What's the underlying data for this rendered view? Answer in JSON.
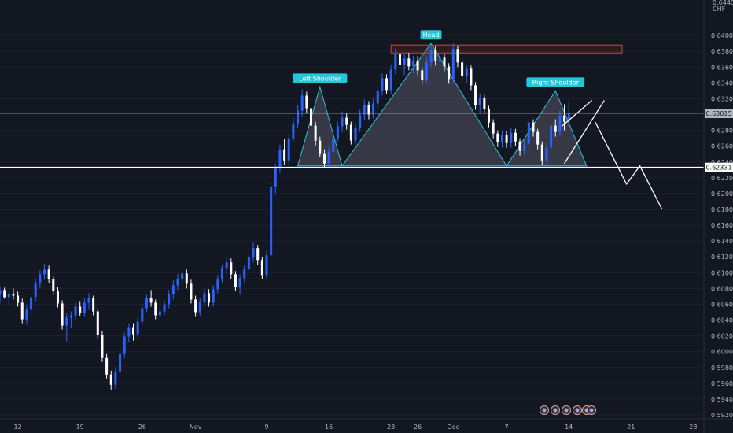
{
  "chart_data": {
    "type": "candlestick",
    "currency": "CHF",
    "y_top_label": "0.64400",
    "ylim": [
      0.5915,
      0.6445
    ],
    "y_ticks": [
      "0.64000",
      "0.63800",
      "0.63600",
      "0.63400",
      "0.63200",
      "0.62800",
      "0.62600",
      "0.62400",
      "0.62200",
      "0.62000",
      "0.61800",
      "0.61600",
      "0.61400",
      "0.61200",
      "0.61000",
      "0.60800",
      "0.60600",
      "0.60400",
      "0.60200",
      "0.60000",
      "0.59800",
      "0.59600",
      "0.59400",
      "0.59200"
    ],
    "x_ticks": [
      {
        "label": "12",
        "day": 12
      },
      {
        "label": "19",
        "day": 19
      },
      {
        "label": "26",
        "day": 26
      },
      {
        "label": "Nov",
        "day": 32
      },
      {
        "label": "9",
        "day": 40
      },
      {
        "label": "16",
        "day": 47
      },
      {
        "label": "23",
        "day": 54
      },
      {
        "label": "26",
        "day": 57
      },
      {
        "label": "Dec",
        "day": 61
      },
      {
        "label": "7",
        "day": 67
      },
      {
        "label": "14",
        "day": 74
      },
      {
        "label": "21",
        "day": 81
      },
      {
        "label": "28",
        "day": 88
      }
    ],
    "current_price": {
      "label": "0.63015",
      "value": 0.63015
    },
    "neckline": {
      "label": "0.62331",
      "value": 0.62331
    },
    "patterns": [
      {
        "label": "Left Shoulder",
        "points": [
          [
            43.5,
            0.6235
          ],
          [
            46.0,
            0.6335
          ],
          [
            48.5,
            0.6235
          ]
        ]
      },
      {
        "label": "Head",
        "points": [
          [
            48.5,
            0.6235
          ],
          [
            58.5,
            0.639
          ],
          [
            67.0,
            0.6235
          ]
        ]
      },
      {
        "label": "Right Shoulder",
        "points": [
          [
            67.0,
            0.6235
          ],
          [
            72.5,
            0.633
          ],
          [
            76.0,
            0.6235
          ]
        ]
      }
    ],
    "resistance_zone": {
      "x": [
        54.0,
        80.0
      ],
      "y": [
        0.6378,
        0.6388
      ]
    },
    "projection": [
      [
        77.0,
        0.629
      ],
      [
        80.5,
        0.6212
      ],
      [
        82.0,
        0.6235
      ],
      [
        84.5,
        0.618
      ]
    ],
    "wedge_lines": [
      [
        [
          73.5,
          0.6238
        ],
        [
          78.0,
          0.6318
        ]
      ],
      [
        [
          73.2,
          0.6285
        ],
        [
          76.6,
          0.6318
        ]
      ]
    ],
    "ohlc": [
      [
        10.0,
        0.6072,
        0.6083,
        0.6061,
        0.6078
      ],
      [
        10.5,
        0.6078,
        0.6081,
        0.6067,
        0.6069
      ],
      [
        11.0,
        0.6069,
        0.6077,
        0.6059,
        0.6073
      ],
      [
        11.5,
        0.6073,
        0.608,
        0.6066,
        0.6071
      ],
      [
        12.0,
        0.6071,
        0.6076,
        0.6057,
        0.6062
      ],
      [
        12.5,
        0.6062,
        0.6067,
        0.6036,
        0.6041
      ],
      [
        13.0,
        0.6041,
        0.6058,
        0.6034,
        0.6053
      ],
      [
        13.5,
        0.6053,
        0.6073,
        0.6048,
        0.6069
      ],
      [
        14.0,
        0.6069,
        0.6092,
        0.6064,
        0.6087
      ],
      [
        14.5,
        0.6087,
        0.6103,
        0.608,
        0.6098
      ],
      [
        15.0,
        0.6098,
        0.6111,
        0.6091,
        0.6104
      ],
      [
        15.5,
        0.6104,
        0.6109,
        0.6087,
        0.6092
      ],
      [
        16.0,
        0.6092,
        0.6096,
        0.6072,
        0.6077
      ],
      [
        16.5,
        0.6077,
        0.6082,
        0.6056,
        0.6061
      ],
      [
        17.0,
        0.6061,
        0.6065,
        0.6028,
        0.6033
      ],
      [
        17.5,
        0.6033,
        0.6049,
        0.6013,
        0.6043
      ],
      [
        18.0,
        0.6043,
        0.6051,
        0.603,
        0.6046
      ],
      [
        18.5,
        0.6046,
        0.6062,
        0.6041,
        0.6057
      ],
      [
        19.0,
        0.6057,
        0.6064,
        0.6045,
        0.6049
      ],
      [
        19.5,
        0.6049,
        0.6068,
        0.6044,
        0.6062
      ],
      [
        20.0,
        0.6062,
        0.6074,
        0.6053,
        0.6068
      ],
      [
        20.5,
        0.6068,
        0.6071,
        0.6046,
        0.6051
      ],
      [
        21.0,
        0.6051,
        0.6055,
        0.6016,
        0.6021
      ],
      [
        21.5,
        0.6021,
        0.6026,
        0.5987,
        0.5992
      ],
      [
        22.0,
        0.5992,
        0.5997,
        0.5966,
        0.5971
      ],
      [
        22.5,
        0.5971,
        0.5976,
        0.5952,
        0.5958
      ],
      [
        23.0,
        0.5958,
        0.598,
        0.5953,
        0.5975
      ],
      [
        23.5,
        0.5975,
        0.6002,
        0.597,
        0.5997
      ],
      [
        24.0,
        0.5997,
        0.6024,
        0.5992,
        0.6019
      ],
      [
        24.5,
        0.6019,
        0.6036,
        0.6012,
        0.6031
      ],
      [
        25.0,
        0.6031,
        0.6036,
        0.6014,
        0.6022
      ],
      [
        25.5,
        0.6022,
        0.6043,
        0.6017,
        0.6038
      ],
      [
        26.0,
        0.6038,
        0.606,
        0.6033,
        0.6055
      ],
      [
        26.5,
        0.6055,
        0.6072,
        0.605,
        0.6068
      ],
      [
        27.0,
        0.6068,
        0.6078,
        0.6057,
        0.6062
      ],
      [
        27.5,
        0.6062,
        0.6066,
        0.6041,
        0.6046
      ],
      [
        28.0,
        0.6046,
        0.6056,
        0.6036,
        0.6051
      ],
      [
        28.5,
        0.6051,
        0.6065,
        0.6046,
        0.606
      ],
      [
        29.0,
        0.606,
        0.6078,
        0.6055,
        0.6073
      ],
      [
        29.5,
        0.6073,
        0.609,
        0.6066,
        0.6084
      ],
      [
        30.0,
        0.6084,
        0.6098,
        0.6078,
        0.6092
      ],
      [
        30.5,
        0.6092,
        0.6105,
        0.6085,
        0.6099
      ],
      [
        31.0,
        0.6099,
        0.6104,
        0.608,
        0.6086
      ],
      [
        31.5,
        0.6086,
        0.6091,
        0.6061,
        0.6066
      ],
      [
        32.0,
        0.6066,
        0.6071,
        0.6044,
        0.605
      ],
      [
        32.5,
        0.605,
        0.6068,
        0.6045,
        0.6063
      ],
      [
        33.0,
        0.6063,
        0.608,
        0.6058,
        0.6074
      ],
      [
        33.5,
        0.6074,
        0.6079,
        0.6057,
        0.6062
      ],
      [
        34.0,
        0.6062,
        0.6084,
        0.6057,
        0.6079
      ],
      [
        34.5,
        0.6079,
        0.6097,
        0.6074,
        0.6092
      ],
      [
        35.0,
        0.6092,
        0.611,
        0.6087,
        0.6105
      ],
      [
        35.5,
        0.6105,
        0.612,
        0.6098,
        0.6113
      ],
      [
        36.0,
        0.6113,
        0.6118,
        0.6092,
        0.6098
      ],
      [
        36.5,
        0.6098,
        0.6102,
        0.6077,
        0.6082
      ],
      [
        37.0,
        0.6082,
        0.6098,
        0.6072,
        0.6093
      ],
      [
        37.5,
        0.6093,
        0.611,
        0.6088,
        0.6104
      ],
      [
        38.0,
        0.6104,
        0.6126,
        0.6099,
        0.612
      ],
      [
        38.5,
        0.612,
        0.6138,
        0.6113,
        0.6131
      ],
      [
        39.0,
        0.6131,
        0.6135,
        0.611,
        0.6116
      ],
      [
        39.5,
        0.6116,
        0.612,
        0.6092,
        0.6097
      ],
      [
        40.0,
        0.6097,
        0.6128,
        0.6092,
        0.6122
      ],
      [
        40.5,
        0.6122,
        0.6215,
        0.6118,
        0.6209
      ],
      [
        41.0,
        0.6209,
        0.6238,
        0.6199,
        0.6232
      ],
      [
        41.5,
        0.6232,
        0.6262,
        0.6226,
        0.6256
      ],
      [
        42.0,
        0.6256,
        0.6269,
        0.6236,
        0.6242
      ],
      [
        42.5,
        0.6242,
        0.6276,
        0.6237,
        0.627
      ],
      [
        43.0,
        0.627,
        0.6296,
        0.6264,
        0.6289
      ],
      [
        43.5,
        0.6289,
        0.6312,
        0.6283,
        0.6305
      ],
      [
        44.0,
        0.6305,
        0.6332,
        0.6298,
        0.6324
      ],
      [
        44.5,
        0.6324,
        0.6329,
        0.6302,
        0.6308
      ],
      [
        45.0,
        0.6308,
        0.6313,
        0.6281,
        0.6286
      ],
      [
        45.5,
        0.6286,
        0.6291,
        0.6261,
        0.6267
      ],
      [
        46.0,
        0.6267,
        0.6272,
        0.6246,
        0.6251
      ],
      [
        46.5,
        0.6251,
        0.6256,
        0.6232,
        0.6238
      ],
      [
        47.0,
        0.6238,
        0.6259,
        0.6233,
        0.6253
      ],
      [
        47.5,
        0.6253,
        0.6276,
        0.6248,
        0.627
      ],
      [
        48.0,
        0.627,
        0.6291,
        0.6265,
        0.6285
      ],
      [
        48.5,
        0.6285,
        0.6304,
        0.6278,
        0.6296
      ],
      [
        49.0,
        0.6296,
        0.6302,
        0.6281,
        0.6287
      ],
      [
        49.5,
        0.6287,
        0.6291,
        0.6262,
        0.6267
      ],
      [
        50.0,
        0.6267,
        0.6288,
        0.6262,
        0.6283
      ],
      [
        50.5,
        0.6283,
        0.6306,
        0.6278,
        0.63
      ],
      [
        51.0,
        0.63,
        0.6319,
        0.6293,
        0.6312
      ],
      [
        51.5,
        0.6312,
        0.6317,
        0.6294,
        0.63
      ],
      [
        52.0,
        0.63,
        0.632,
        0.6295,
        0.6314
      ],
      [
        52.5,
        0.6314,
        0.6336,
        0.6308,
        0.633
      ],
      [
        53.0,
        0.633,
        0.6352,
        0.6324,
        0.6346
      ],
      [
        53.5,
        0.6346,
        0.6351,
        0.6326,
        0.6331
      ],
      [
        54.0,
        0.6331,
        0.6363,
        0.6326,
        0.6357
      ],
      [
        54.5,
        0.6357,
        0.6384,
        0.6351,
        0.6377
      ],
      [
        55.0,
        0.6377,
        0.6382,
        0.6358,
        0.6363
      ],
      [
        55.5,
        0.6363,
        0.6377,
        0.635,
        0.6371
      ],
      [
        56.0,
        0.6371,
        0.6378,
        0.6356,
        0.6361
      ],
      [
        56.5,
        0.6361,
        0.6374,
        0.6352,
        0.6368
      ],
      [
        57.0,
        0.6368,
        0.6374,
        0.635,
        0.6356
      ],
      [
        57.5,
        0.6356,
        0.636,
        0.6338,
        0.6344
      ],
      [
        58.0,
        0.6344,
        0.6372,
        0.6339,
        0.6366
      ],
      [
        58.5,
        0.6366,
        0.6389,
        0.636,
        0.6382
      ],
      [
        59.0,
        0.6382,
        0.6387,
        0.6362,
        0.6368
      ],
      [
        59.5,
        0.6368,
        0.6378,
        0.6349,
        0.6372
      ],
      [
        60.0,
        0.6372,
        0.6377,
        0.6355,
        0.6361
      ],
      [
        60.5,
        0.6361,
        0.6365,
        0.6339,
        0.6345
      ],
      [
        61.0,
        0.6345,
        0.639,
        0.634,
        0.6383
      ],
      [
        61.5,
        0.6383,
        0.6387,
        0.636,
        0.6366
      ],
      [
        62.0,
        0.6366,
        0.637,
        0.6343,
        0.6349
      ],
      [
        62.5,
        0.6349,
        0.6363,
        0.634,
        0.6358
      ],
      [
        63.0,
        0.6358,
        0.6362,
        0.6331,
        0.6337
      ],
      [
        63.5,
        0.6337,
        0.6341,
        0.6306,
        0.6312
      ],
      [
        64.0,
        0.6312,
        0.6327,
        0.6302,
        0.6321
      ],
      [
        64.5,
        0.6321,
        0.6325,
        0.6302,
        0.6307
      ],
      [
        65.0,
        0.6307,
        0.6311,
        0.6284,
        0.629
      ],
      [
        65.5,
        0.629,
        0.6294,
        0.627,
        0.6276
      ],
      [
        66.0,
        0.6276,
        0.628,
        0.6259,
        0.6265
      ],
      [
        66.5,
        0.6265,
        0.628,
        0.6258,
        0.6274
      ],
      [
        67.0,
        0.6274,
        0.6279,
        0.6258,
        0.6264
      ],
      [
        67.5,
        0.6264,
        0.6283,
        0.6258,
        0.6277
      ],
      [
        68.0,
        0.6277,
        0.6282,
        0.626,
        0.6266
      ],
      [
        68.5,
        0.6266,
        0.627,
        0.6248,
        0.6254
      ],
      [
        69.0,
        0.6254,
        0.6268,
        0.6249,
        0.6263
      ],
      [
        69.5,
        0.6263,
        0.6295,
        0.6258,
        0.629
      ],
      [
        70.0,
        0.629,
        0.6294,
        0.6272,
        0.6278
      ],
      [
        70.5,
        0.6278,
        0.6282,
        0.6256,
        0.6262
      ],
      [
        71.0,
        0.6262,
        0.6266,
        0.6236,
        0.6242
      ],
      [
        71.5,
        0.6242,
        0.6264,
        0.6237,
        0.6258
      ],
      [
        72.0,
        0.6258,
        0.6292,
        0.6253,
        0.6286
      ],
      [
        72.5,
        0.6286,
        0.6294,
        0.6272,
        0.6278
      ],
      [
        73.0,
        0.6278,
        0.6305,
        0.6273,
        0.6299
      ],
      [
        73.5,
        0.6299,
        0.6313,
        0.628,
        0.6291
      ],
      [
        74.0,
        0.6291,
        0.6318,
        0.6286,
        0.6302
      ]
    ]
  },
  "series_colors": {
    "up": "#2962ff",
    "down": "#ffffff",
    "pattern_line": "#26c6da",
    "pattern_fill": "#434651",
    "badge": "#26c6da",
    "zone": "#e53935",
    "projection": "#ffffff"
  },
  "toolbar_icons": [
    "event-flag-icon",
    "event-flag-icon",
    "event-flag-icon",
    "event-flag-icon",
    "event-flag-icon",
    "event-flag-icon"
  ]
}
